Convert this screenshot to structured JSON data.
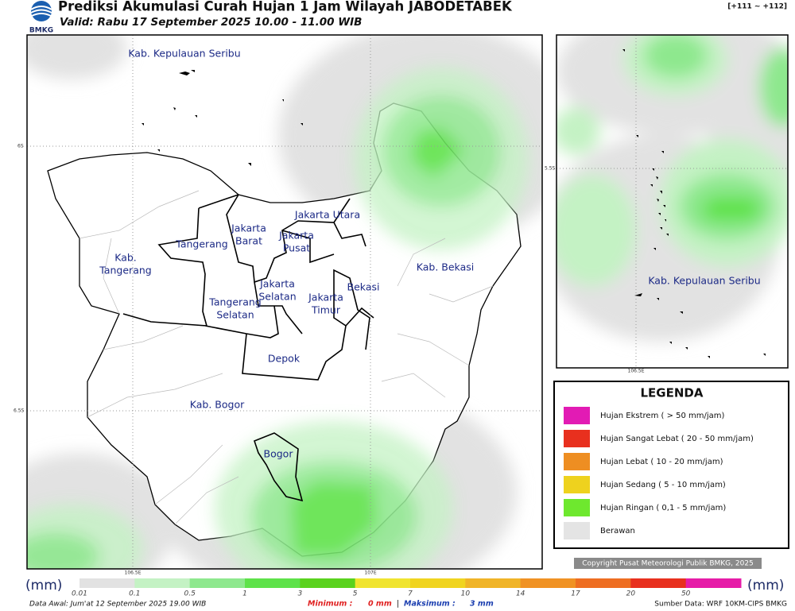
{
  "header": {
    "logo": "BMKG",
    "title": "Prediksi Akumulasi Curah Hujan 1 Jam Wilayah JABODETABEK",
    "valid": "Valid: Rabu 17 September 2025 10.00 - 11.00 WIB",
    "range": "[+111 ~ +112]"
  },
  "map": {
    "labels": [
      [
        "Kab. Kepulauan Seribu"
      ],
      [
        "Jakarta Utara"
      ],
      [
        "Jakarta",
        "Barat"
      ],
      [
        "Jakarta",
        "Pusat"
      ],
      [
        "Tangerang"
      ],
      [
        "Kab.",
        "Tangerang"
      ],
      [
        "Jakarta",
        "Selatan"
      ],
      [
        "Jakarta",
        "Timur"
      ],
      [
        "Bekasi"
      ],
      [
        "Kab. Bekasi"
      ],
      [
        "Tangerang",
        "Selatan"
      ],
      [
        "Depok"
      ],
      [
        "Kab. Bogor"
      ],
      [
        "Bogor"
      ]
    ],
    "grid_labels": [
      "6S",
      "6.5S",
      "106.5E",
      "107E"
    ]
  },
  "inset": {
    "label": "Kab. Kepulauan Seribu",
    "grid_labels": [
      "5.5S",
      "106.5E"
    ]
  },
  "legend": {
    "title": "LEGENDA",
    "items": [
      {
        "label": "Hujan Ekstrem ( > 50 mm/jam)",
        "color": "#e21bb4"
      },
      {
        "label": "Hujan Sangat Lebat ( 20 - 50 mm/jam)",
        "color": "#e8301e"
      },
      {
        "label": "Hujan Lebat ( 10 - 20 mm/jam)",
        "color": "#ee8e22"
      },
      {
        "label": "Hujan Sedang ( 5 - 10 mm/jam)",
        "color": "#eed21e"
      },
      {
        "label": "Hujan Ringan ( 0,1 - 5 mm/jam)",
        "color": "#6ee82e"
      },
      {
        "label": "Berawan",
        "color": "#e4e4e4"
      }
    ]
  },
  "copyright": "Copyright Pusat Meteorologi Publik BMKG, 2025",
  "scale": {
    "unit": "(mm)",
    "ticks": [
      "0.01",
      "0.1",
      "0.5",
      "1",
      "3",
      "5",
      "7",
      "10",
      "14",
      "17",
      "20",
      "50"
    ],
    "colors": [
      "#e2e2e2",
      "#c4f2c4",
      "#8ee88e",
      "#5ee24a",
      "#5ad21e",
      "#f0e430",
      "#f0d420",
      "#f0b428",
      "#f09224",
      "#ee6e22",
      "#e8301e",
      "#e61ca8"
    ]
  },
  "footer": {
    "data_awal": "Data Awal: Jum'at 12 September 2025 19.00 WIB",
    "minimum_label": "Minimum :",
    "minimum": "0 mm",
    "separator": "|",
    "maximum_label": "Maksimum :",
    "maximum": "3 mm",
    "source": "Sumber Data: WRF 10KM-CIPS BMKG"
  }
}
